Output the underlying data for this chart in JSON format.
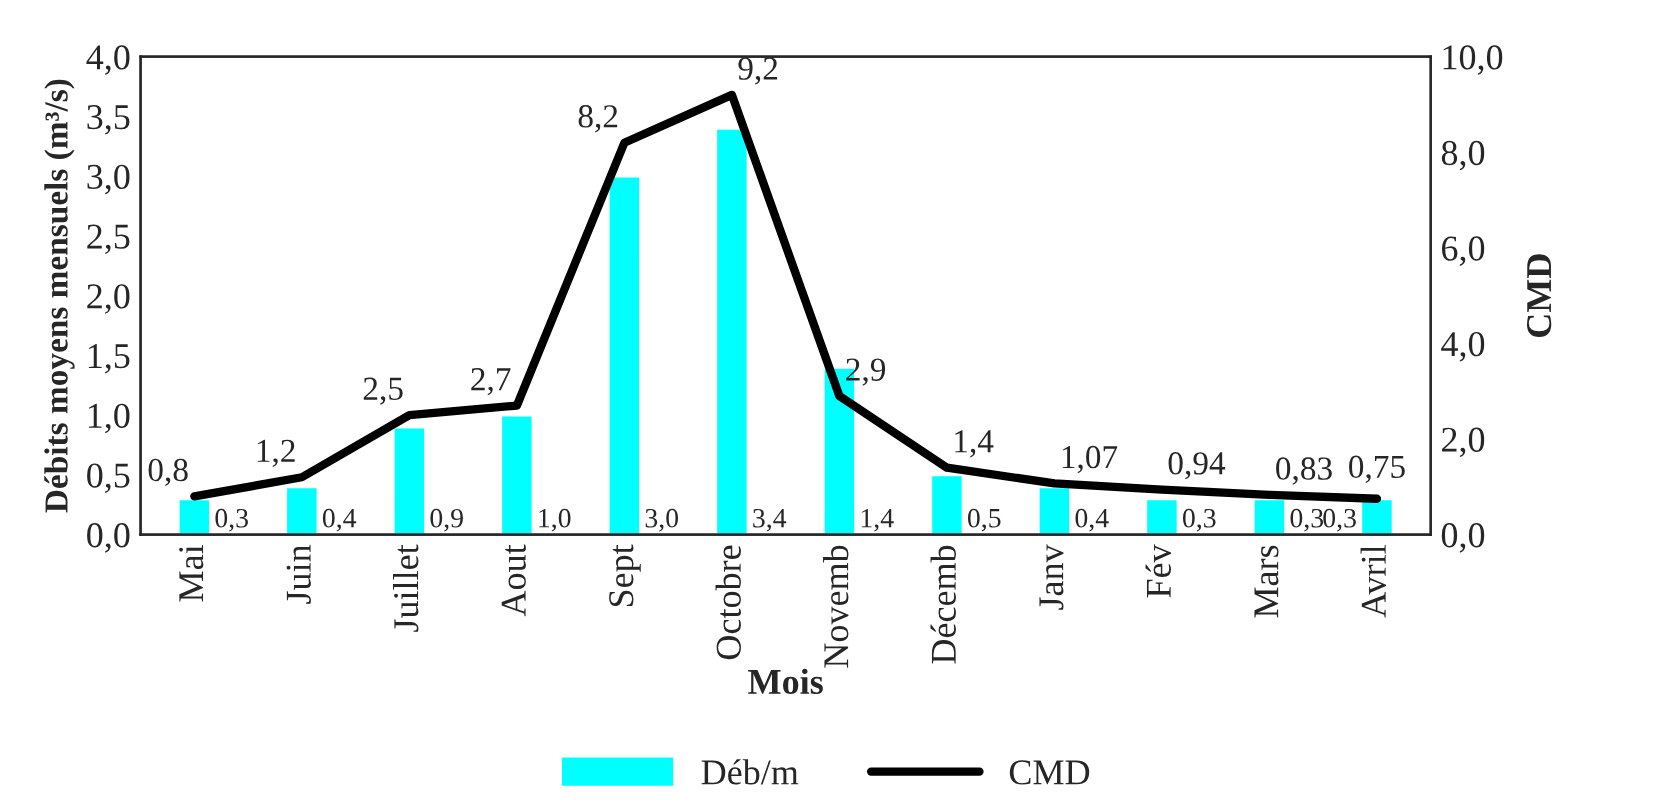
{
  "chart_data": {
    "type": "bar",
    "xlabel": "Mois",
    "ylabel": "Débits moyens mensuels (m³/s)",
    "y2label": "CMD",
    "categories": [
      "Mai",
      "Juin",
      "Juillet",
      "Aout",
      "Sept",
      "Octobre",
      "Novemb",
      "Décemb",
      "Janv",
      "Fév",
      "Mars",
      "Avril"
    ],
    "series": [
      {
        "name": "Déb/m",
        "color": "#00ffff",
        "values": [
          0.3,
          0.4,
          0.9,
          1.0,
          3.0,
          3.4,
          1.4,
          0.5,
          0.4,
          0.3,
          0.3,
          0.3
        ],
        "value_labels": [
          "0,3",
          "0,4",
          "0,9",
          "1,0",
          "3,0",
          "3,4",
          "1,4",
          "0,5",
          "0,4",
          "0,3",
          "0,3",
          "0,3"
        ]
      },
      {
        "name": "CMD",
        "type": "line",
        "axis": "y2",
        "color": "#000000",
        "values": [
          0.8,
          1.2,
          2.5,
          2.7,
          8.2,
          9.2,
          2.9,
          1.4,
          1.07,
          0.94,
          0.83,
          0.75
        ],
        "value_labels": [
          "0,8",
          "1,2",
          "2,5",
          "2,7",
          "8,2",
          "9,2",
          "2,9",
          "1,4",
          "1,07",
          "0,94",
          "0,83",
          "0,75"
        ]
      }
    ],
    "ylim": [
      0,
      4
    ],
    "yticks": [
      {
        "value": 0,
        "label": "0,0"
      },
      {
        "value": 0.5,
        "label": "0,5"
      },
      {
        "value": 1,
        "label": "1,0"
      },
      {
        "value": 1.5,
        "label": "1,5"
      },
      {
        "value": 2,
        "label": "2,0"
      },
      {
        "value": 2.5,
        "label": "2,5"
      },
      {
        "value": 3,
        "label": "3,0"
      },
      {
        "value": 3.5,
        "label": "3,5"
      },
      {
        "value": 4,
        "label": "4,0"
      }
    ],
    "y2lim": [
      0,
      10
    ],
    "y2ticks": [
      {
        "value": 0,
        "label": "0,0"
      },
      {
        "value": 2,
        "label": "2,0"
      },
      {
        "value": 4,
        "label": "4,0"
      },
      {
        "value": 6,
        "label": "6,0"
      },
      {
        "value": 8,
        "label": "8,0"
      },
      {
        "value": 10,
        "label": "10,0"
      }
    ],
    "grid": false,
    "legend": "bottom",
    "marker": "none",
    "line_style": "solid"
  }
}
